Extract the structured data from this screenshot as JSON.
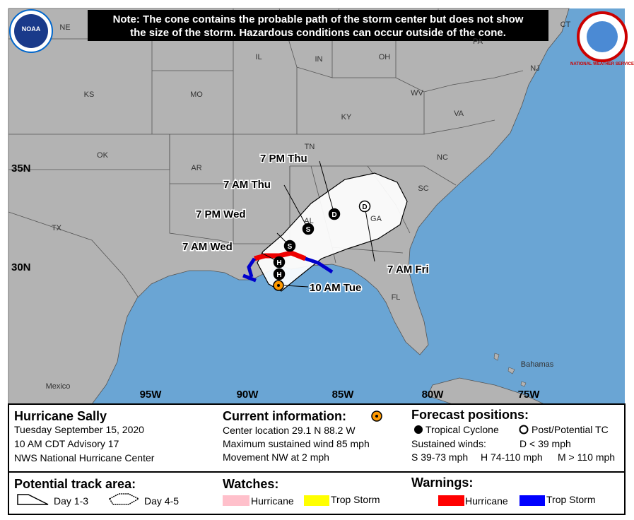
{
  "note": [
    "Note: The cone contains the probable path of the storm center but does not show",
    "the size of the storm. Hazardous conditions can occur outside of the cone."
  ],
  "logos": {
    "left": "NOAA",
    "right": "NATIONAL WEATHER SERVICE"
  },
  "map": {
    "regions": [
      "NE",
      "IL",
      "IN",
      "OH",
      "PA",
      "NJ",
      "CT",
      "KS",
      "MO",
      "KY",
      "WV",
      "VA",
      "TN",
      "NC",
      "OK",
      "AR",
      "SC",
      "GA",
      "AL",
      "TX",
      "FL",
      "Mexico",
      "Bahamas"
    ],
    "latitudes": [
      "35N",
      "30N"
    ],
    "longitudes": [
      "95W",
      "90W",
      "85W",
      "80W",
      "75W"
    ],
    "current": {
      "label": "10 AM Tue"
    },
    "forecast_points": [
      {
        "symbol": "H"
      },
      {
        "symbol": "H",
        "label": "7 AM Wed"
      },
      {
        "symbol": "S",
        "label": "7 PM Wed"
      },
      {
        "symbol": "S",
        "label": "7 AM Thu"
      },
      {
        "symbol": "D",
        "label": "7 PM Thu"
      },
      {
        "symbol": "D",
        "label": "7 AM Fri",
        "post_tropical": true
      }
    ]
  },
  "info": {
    "storm": "Hurricane Sally",
    "lines": [
      "Tuesday September 15, 2020",
      "10 AM CDT Advisory 17",
      "NWS National Hurricane Center"
    ]
  },
  "current": {
    "heading": "Current information:",
    "lines": [
      "Center location 29.1 N 88.2 W",
      "Maximum sustained wind 85 mph",
      "Movement NW at 2 mph"
    ]
  },
  "forecast_legend": {
    "heading": "Forecast positions:",
    "tropical": "Tropical Cyclone",
    "post": "Post/Potential TC",
    "winds_heading": "Sustained winds:",
    "winds": [
      "D < 39 mph",
      "S 39-73 mph",
      "H 74-110 mph",
      "M > 110 mph"
    ]
  },
  "track_area": {
    "heading": "Potential track area:",
    "items": [
      "Day 1-3",
      "Day 4-5"
    ]
  },
  "watches": {
    "heading": "Watches:",
    "items": [
      "Hurricane",
      "Trop Storm"
    ]
  },
  "warnings": {
    "heading": "Warnings:",
    "items": [
      "Hurricane",
      "Trop Storm"
    ]
  }
}
